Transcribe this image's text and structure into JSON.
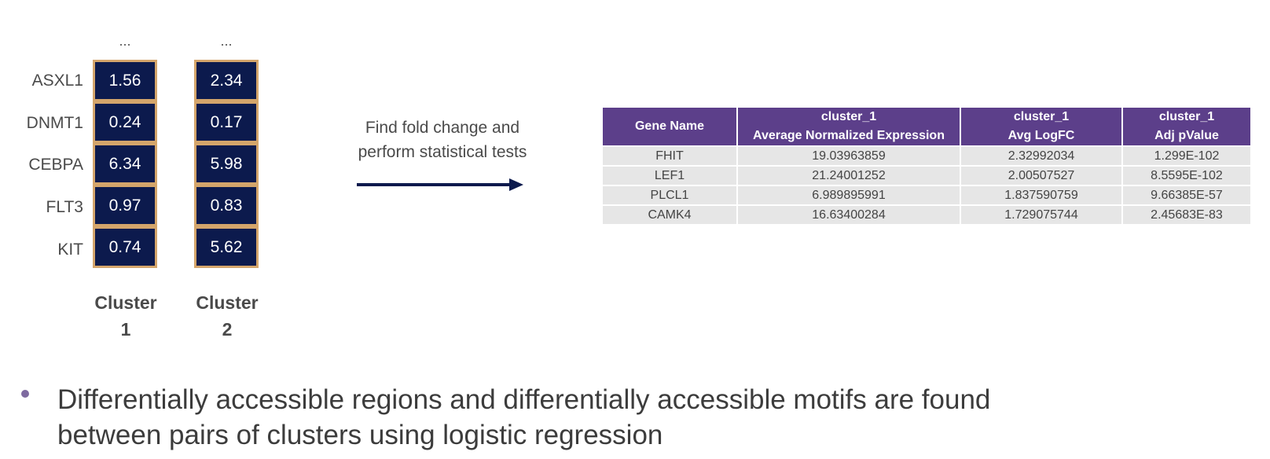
{
  "genes": [
    "ASXL1",
    "DNMT1",
    "CEBPA",
    "FLT3",
    "KIT"
  ],
  "clusters": [
    {
      "ellipsis": "...",
      "title_line1": "Cluster",
      "title_line2": "1",
      "values": [
        "1.56",
        "0.24",
        "6.34",
        "0.97",
        "0.74"
      ]
    },
    {
      "ellipsis": "...",
      "title_line1": "Cluster",
      "title_line2": "2",
      "values": [
        "2.34",
        "0.17",
        "5.98",
        "0.83",
        "5.62"
      ]
    }
  ],
  "arrow_text": {
    "line1": "Find fold change and",
    "line2": "perform statistical tests"
  },
  "table": {
    "headers": [
      {
        "line1": "Gene Name",
        "line2": ""
      },
      {
        "line1": "cluster_1",
        "line2": "Average Normalized Expression"
      },
      {
        "line1": "cluster_1",
        "line2": "Avg LogFC"
      },
      {
        "line1": "cluster_1",
        "line2": "Adj pValue"
      }
    ],
    "rows": [
      [
        "FHIT",
        "19.03963859",
        "2.32992034",
        "1.299E-102"
      ],
      [
        "LEF1",
        "21.24001252",
        "2.00507527",
        "8.5595E-102"
      ],
      [
        "PLCL1",
        "6.989895991",
        "1.837590759",
        "9.66385E-57"
      ],
      [
        "CAMK4",
        "16.63400284",
        "1.729075744",
        "2.45683E-83"
      ]
    ]
  },
  "bullet": {
    "line1": "Differentially accessible regions and differentially accessible motifs are found",
    "line2": "between pairs of clusters using logistic regression"
  },
  "colors": {
    "cell_fill": "#0c1a4d",
    "cell_border": "#d4a56b",
    "table_header": "#5c3f8a",
    "table_cell": "#e6e6e6",
    "arrow": "#0c1a4d",
    "bullet": "#7e6aa0"
  }
}
